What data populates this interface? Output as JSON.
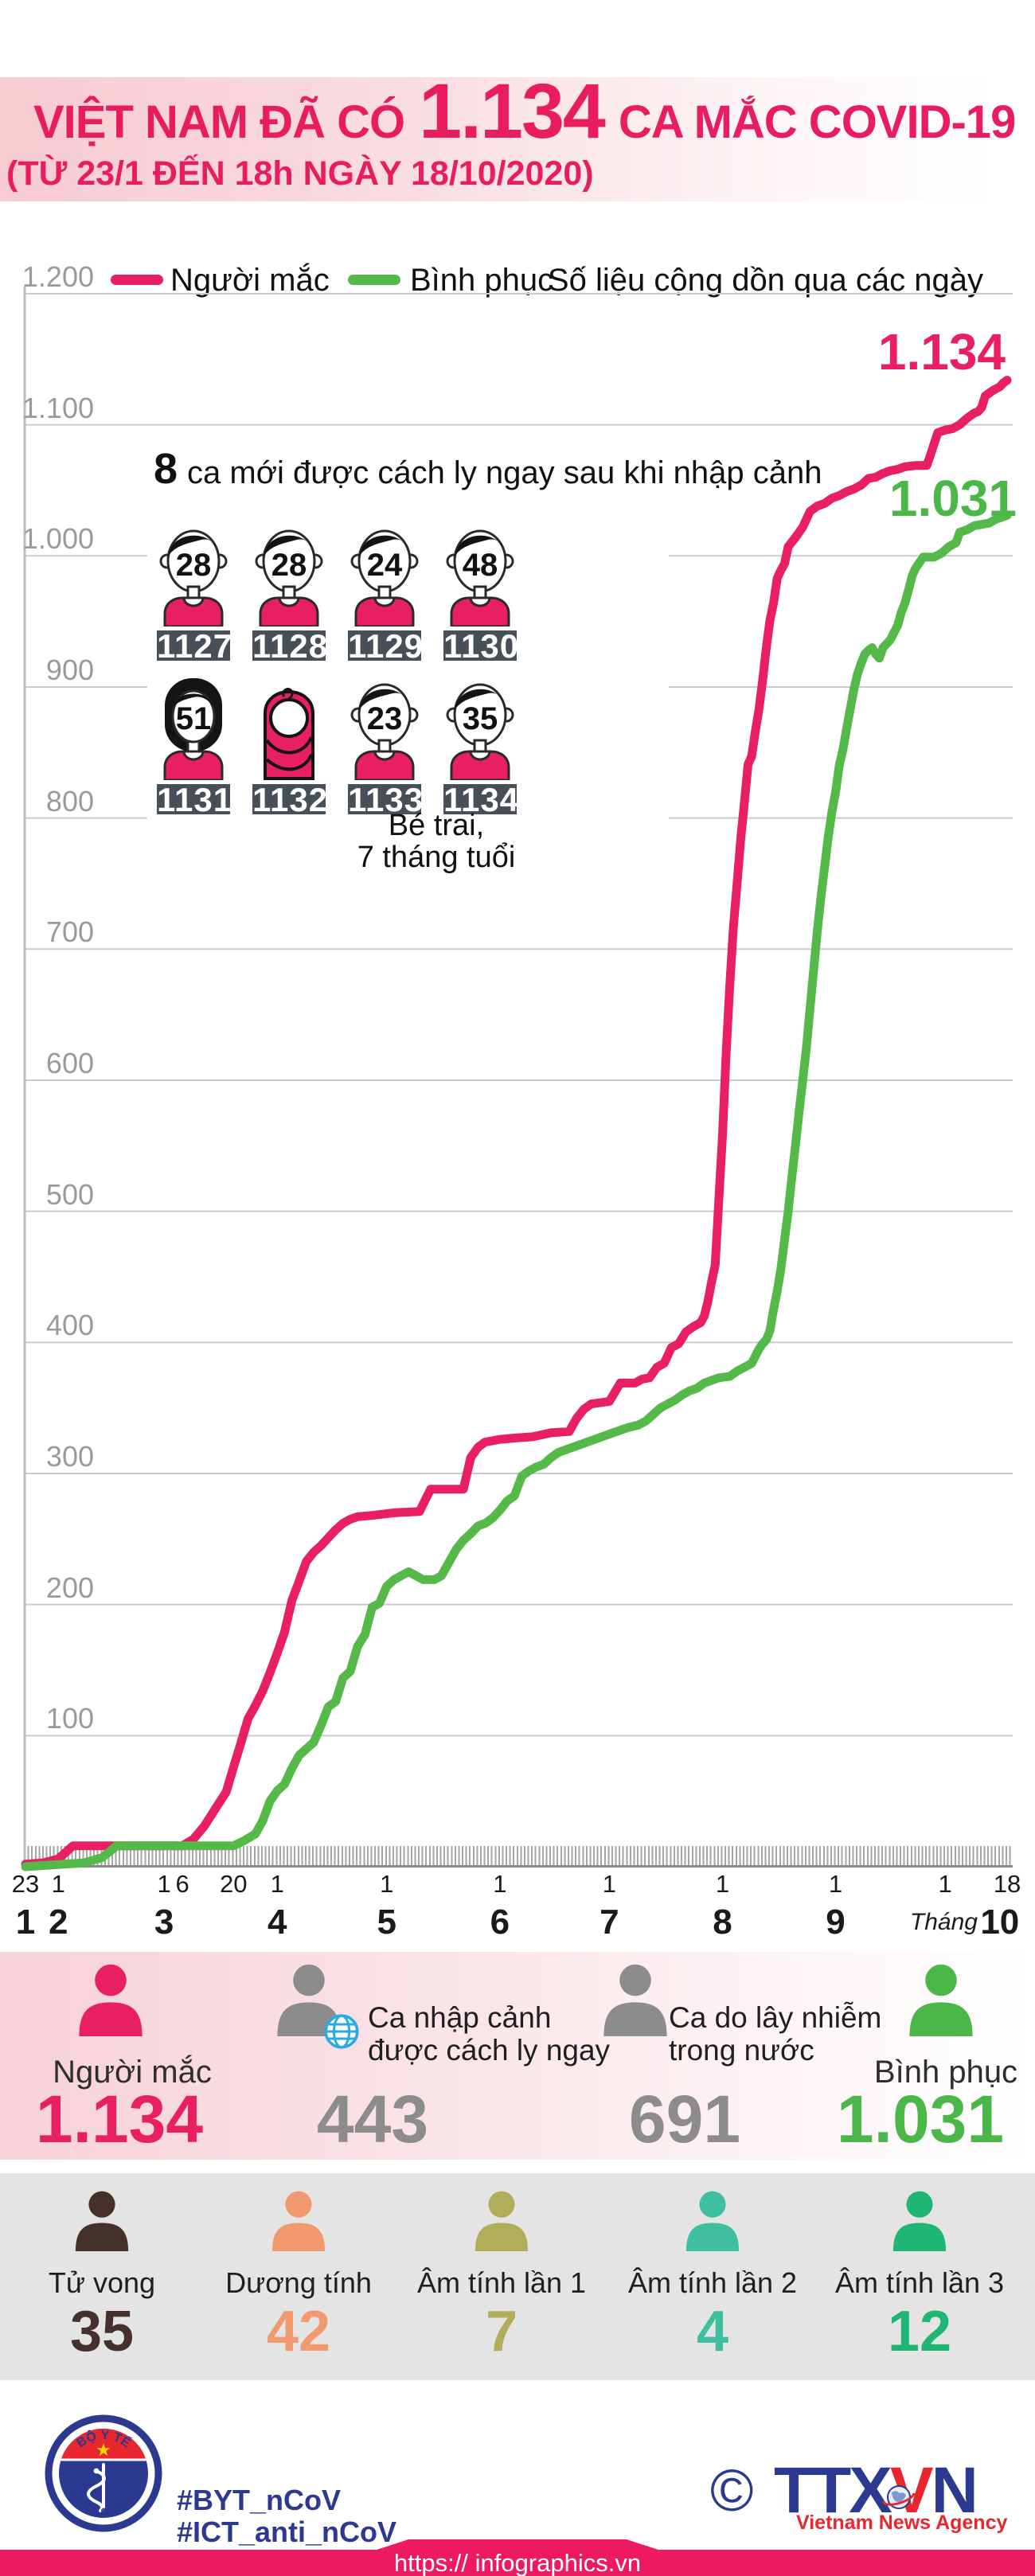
{
  "header": {
    "title_prefix": "VIỆT NAM ĐÃ CÓ",
    "title_number": "1.134",
    "title_suffix": "CA MẮC COVID-19",
    "subtitle": "(TỪ 23/1 ĐẾN 18h NGÀY 18/10/2020)"
  },
  "legend": {
    "note": "Số liệu cộng dồn qua các ngày"
  },
  "annotation": {
    "count": "8",
    "text": "ca mới được cách ly ngay sau khi nhập cảnh",
    "caption_line1": "Bé trai,",
    "caption_line2": "7 tháng tuổi",
    "persons": [
      {
        "age": "28",
        "id": "1127",
        "type": "male"
      },
      {
        "age": "28",
        "id": "1128",
        "type": "male"
      },
      {
        "age": "24",
        "id": "1129",
        "type": "male"
      },
      {
        "age": "48",
        "id": "1130",
        "type": "male"
      },
      {
        "age": "51",
        "id": "1131",
        "type": "female"
      },
      {
        "age": "",
        "id": "1132",
        "type": "baby"
      },
      {
        "age": "23",
        "id": "1133",
        "type": "male"
      },
      {
        "age": "35",
        "id": "1134",
        "type": "male"
      }
    ]
  },
  "chart_data": {
    "type": "line",
    "title": "Số liệu cộng dồn qua các ngày",
    "x_axis": "days, 23/1/2020 (day 0) to 18/10/2020 (day 269)",
    "ylabel": "",
    "ylim": [
      0,
      1200
    ],
    "grid": true,
    "y_ticks": [
      {
        "v": 1200,
        "label": "1.200"
      },
      {
        "v": 1100,
        "label": "1.100"
      },
      {
        "v": 1000,
        "label": "1.000"
      },
      {
        "v": 900,
        "label": "900"
      },
      {
        "v": 800,
        "label": "800"
      },
      {
        "v": 700,
        "label": "700"
      },
      {
        "v": 600,
        "label": "600"
      },
      {
        "v": 500,
        "label": "500"
      },
      {
        "v": 400,
        "label": "400"
      },
      {
        "v": 300,
        "label": "300"
      },
      {
        "v": 200,
        "label": "200"
      },
      {
        "v": 100,
        "label": "100"
      }
    ],
    "x_day_ticks": [
      {
        "day": 0,
        "label": "23"
      },
      {
        "day": 9,
        "label": "1"
      },
      {
        "day": 38,
        "label": "1"
      },
      {
        "day": 43,
        "label": "6"
      },
      {
        "day": 57,
        "label": "20"
      },
      {
        "day": 69,
        "label": "1"
      },
      {
        "day": 99,
        "label": "1"
      },
      {
        "day": 130,
        "label": "1"
      },
      {
        "day": 160,
        "label": "1"
      },
      {
        "day": 191,
        "label": "1"
      },
      {
        "day": 222,
        "label": "1"
      },
      {
        "day": 252,
        "label": "1"
      },
      {
        "day": 269,
        "label": "18"
      }
    ],
    "x_month_ticks": [
      {
        "day": 0,
        "label": "1"
      },
      {
        "day": 9,
        "label": "2"
      },
      {
        "day": 38,
        "label": "3"
      },
      {
        "day": 69,
        "label": "4"
      },
      {
        "day": 99,
        "label": "5"
      },
      {
        "day": 130,
        "label": "6"
      },
      {
        "day": 160,
        "label": "7"
      },
      {
        "day": 191,
        "label": "8"
      },
      {
        "day": 222,
        "label": "9"
      },
      {
        "day": 267,
        "label": "10"
      }
    ],
    "month_prefix": "Tháng",
    "series": [
      {
        "name": "Người mắc",
        "color": "#e81f63",
        "end_label": "1.134",
        "points": [
          [
            0,
            2
          ],
          [
            5,
            3
          ],
          [
            9,
            6
          ],
          [
            13,
            16
          ],
          [
            43,
            16
          ],
          [
            46,
            21
          ],
          [
            49,
            31
          ],
          [
            52,
            44
          ],
          [
            55,
            57
          ],
          [
            57,
            76
          ],
          [
            59,
            94
          ],
          [
            61,
            113
          ],
          [
            63,
            123
          ],
          [
            65,
            134
          ],
          [
            67,
            148
          ],
          [
            69,
            163
          ],
          [
            71,
            179
          ],
          [
            73,
            203
          ],
          [
            75,
            218
          ],
          [
            77,
            233
          ],
          [
            79,
            240
          ],
          [
            81,
            245
          ],
          [
            83,
            251
          ],
          [
            85,
            257
          ],
          [
            87,
            262
          ],
          [
            89,
            265
          ],
          [
            91,
            267
          ],
          [
            95,
            268
          ],
          [
            101,
            270
          ],
          [
            108,
            271
          ],
          [
            111,
            288
          ],
          [
            120,
            288
          ],
          [
            122,
            312
          ],
          [
            124,
            320
          ],
          [
            126,
            324
          ],
          [
            130,
            326
          ],
          [
            134,
            327
          ],
          [
            139,
            328
          ],
          [
            144,
            331
          ],
          [
            149,
            332
          ],
          [
            151,
            342
          ],
          [
            153,
            349
          ],
          [
            155,
            353
          ],
          [
            160,
            355
          ],
          [
            163,
            369
          ],
          [
            167,
            369
          ],
          [
            169,
            372
          ],
          [
            171,
            373
          ],
          [
            173,
            381
          ],
          [
            175,
            384
          ],
          [
            177,
            396
          ],
          [
            179,
            399
          ],
          [
            181,
            408
          ],
          [
            183,
            412
          ],
          [
            185,
            415
          ],
          [
            186,
            420
          ],
          [
            187,
            431
          ],
          [
            188,
            446
          ],
          [
            189,
            459
          ],
          [
            190,
            509
          ],
          [
            191,
            558
          ],
          [
            192,
            621
          ],
          [
            193,
            672
          ],
          [
            194,
            717
          ],
          [
            195,
            750
          ],
          [
            196,
            784
          ],
          [
            197,
            812
          ],
          [
            198,
            841
          ],
          [
            199,
            847
          ],
          [
            200,
            866
          ],
          [
            201,
            883
          ],
          [
            202,
            905
          ],
          [
            203,
            930
          ],
          [
            204,
            951
          ],
          [
            205,
            964
          ],
          [
            206,
            983
          ],
          [
            207,
            989
          ],
          [
            208,
            994
          ],
          [
            209,
            1007
          ],
          [
            211,
            1014
          ],
          [
            213,
            1022
          ],
          [
            215,
            1034
          ],
          [
            217,
            1038
          ],
          [
            219,
            1040
          ],
          [
            221,
            1044
          ],
          [
            223,
            1046
          ],
          [
            225,
            1049
          ],
          [
            227,
            1051
          ],
          [
            229,
            1054
          ],
          [
            231,
            1059
          ],
          [
            233,
            1060
          ],
          [
            235,
            1063
          ],
          [
            237,
            1065
          ],
          [
            239,
            1066
          ],
          [
            241,
            1068
          ],
          [
            244,
            1069
          ],
          [
            247,
            1069
          ],
          [
            248,
            1077
          ],
          [
            250,
            1094
          ],
          [
            252,
            1096
          ],
          [
            254,
            1097
          ],
          [
            256,
            1100
          ],
          [
            258,
            1105
          ],
          [
            260,
            1109
          ],
          [
            261,
            1110
          ],
          [
            262,
            1113
          ],
          [
            263,
            1122
          ],
          [
            264,
            1124
          ],
          [
            265,
            1126
          ],
          [
            267,
            1129
          ],
          [
            268,
            1132
          ],
          [
            269,
            1134
          ]
        ]
      },
      {
        "name": "Bình phục",
        "color": "#54b948",
        "end_label": "1.031",
        "points": [
          [
            0,
            0
          ],
          [
            16,
            3
          ],
          [
            21,
            7
          ],
          [
            25,
            16
          ],
          [
            57,
            16
          ],
          [
            60,
            20
          ],
          [
            63,
            25
          ],
          [
            65,
            35
          ],
          [
            67,
            50
          ],
          [
            69,
            58
          ],
          [
            71,
            63
          ],
          [
            73,
            75
          ],
          [
            75,
            85
          ],
          [
            77,
            90
          ],
          [
            79,
            95
          ],
          [
            81,
            108
          ],
          [
            83,
            122
          ],
          [
            85,
            126
          ],
          [
            87,
            144
          ],
          [
            89,
            149
          ],
          [
            91,
            168
          ],
          [
            93,
            177
          ],
          [
            95,
            198
          ],
          [
            97,
            201
          ],
          [
            99,
            214
          ],
          [
            101,
            219
          ],
          [
            103,
            222
          ],
          [
            105,
            225
          ],
          [
            107,
            222
          ],
          [
            109,
            219
          ],
          [
            112,
            219
          ],
          [
            114,
            222
          ],
          [
            116,
            232
          ],
          [
            118,
            242
          ],
          [
            120,
            249
          ],
          [
            122,
            254
          ],
          [
            124,
            260
          ],
          [
            126,
            262
          ],
          [
            128,
            266
          ],
          [
            130,
            272
          ],
          [
            132,
            279
          ],
          [
            134,
            283
          ],
          [
            136,
            298
          ],
          [
            138,
            302
          ],
          [
            140,
            305
          ],
          [
            142,
            307
          ],
          [
            144,
            312
          ],
          [
            146,
            316
          ],
          [
            148,
            318
          ],
          [
            150,
            320
          ],
          [
            153,
            323
          ],
          [
            156,
            326
          ],
          [
            159,
            329
          ],
          [
            162,
            332
          ],
          [
            165,
            335
          ],
          [
            168,
            337
          ],
          [
            170,
            340
          ],
          [
            172,
            345
          ],
          [
            174,
            350
          ],
          [
            176,
            353
          ],
          [
            178,
            356
          ],
          [
            180,
            360
          ],
          [
            182,
            363
          ],
          [
            184,
            365
          ],
          [
            186,
            369
          ],
          [
            188,
            371
          ],
          [
            190,
            373
          ],
          [
            193,
            374
          ],
          [
            195,
            378
          ],
          [
            197,
            381
          ],
          [
            199,
            384
          ],
          [
            201,
            395
          ],
          [
            202,
            399
          ],
          [
            203,
            402
          ],
          [
            204,
            409
          ],
          [
            205,
            425
          ],
          [
            206,
            439
          ],
          [
            207,
            456
          ],
          [
            208,
            478
          ],
          [
            209,
            500
          ],
          [
            210,
            526
          ],
          [
            211,
            550
          ],
          [
            212,
            576
          ],
          [
            213,
            600
          ],
          [
            214,
            625
          ],
          [
            215,
            655
          ],
          [
            216,
            685
          ],
          [
            217,
            714
          ],
          [
            218,
            740
          ],
          [
            219,
            763
          ],
          [
            220,
            786
          ],
          [
            221,
            805
          ],
          [
            222,
            820
          ],
          [
            223,
            840
          ],
          [
            224,
            852
          ],
          [
            225,
            868
          ],
          [
            226,
            883
          ],
          [
            227,
            898
          ],
          [
            228,
            910
          ],
          [
            229,
            918
          ],
          [
            230,
            925
          ],
          [
            231,
            928
          ],
          [
            232,
            930
          ],
          [
            233,
            925
          ],
          [
            234,
            922
          ],
          [
            235,
            930
          ],
          [
            237,
            936
          ],
          [
            239,
            947
          ],
          [
            240,
            957
          ],
          [
            241,
            964
          ],
          [
            242,
            974
          ],
          [
            243,
            985
          ],
          [
            244,
            991
          ],
          [
            245,
            995
          ],
          [
            246,
            999
          ],
          [
            249,
            999
          ],
          [
            251,
            1002
          ],
          [
            253,
            1007
          ],
          [
            255,
            1010
          ],
          [
            256,
            1018
          ],
          [
            258,
            1020
          ],
          [
            260,
            1023
          ],
          [
            262,
            1024
          ],
          [
            264,
            1025
          ],
          [
            266,
            1028
          ],
          [
            268,
            1030
          ],
          [
            269,
            1031
          ]
        ]
      }
    ]
  },
  "stats_primary": [
    {
      "label": "Người mắc",
      "value": "1.134",
      "value_color": "#e81f63",
      "icon_color": "#e81f63",
      "layout": "stack"
    },
    {
      "label_line1": "Ca nhập cảnh",
      "label_line2": "được cách ly ngay",
      "value": "443",
      "value_color": "#8c8c8c",
      "icon_color": "#8c8c8c",
      "layout": "side",
      "globe": true
    },
    {
      "label_line1": "Ca do lây nhiễm",
      "label_line2": "trong nước",
      "value": "691",
      "value_color": "#8c8c8c",
      "icon_color": "#8c8c8c",
      "layout": "side"
    },
    {
      "label": "Bình phục",
      "value": "1.031",
      "value_color": "#4bb749",
      "icon_color": "#4bb749",
      "layout": "stack"
    }
  ],
  "stats_secondary": [
    {
      "label": "Tử vong",
      "value": "35",
      "color": "#46302e"
    },
    {
      "label": "Dương tính",
      "value": "42",
      "color": "#f19a70"
    },
    {
      "label": "Âm tính lần 1",
      "value": "7",
      "color": "#b2ad58"
    },
    {
      "label": "Âm tính lần 2",
      "value": "4",
      "color": "#3fbf9f"
    },
    {
      "label": "Âm tính lần 3",
      "value": "12",
      "color": "#1fb573"
    }
  ],
  "footer": {
    "hashtag1": "#BYT_nCoV",
    "hashtag2": "#ICT_anti_nCoV",
    "copyright": "©",
    "agency_part1": "TTX",
    "agency_part2": "V",
    "agency_part3": "N",
    "agency_sub": "Vietnam News Agency",
    "url": "https:// infographics.vn",
    "moh_top": "BỘ Y TẾ",
    "moh_bottom": "MINISTRY OF HEALTH"
  }
}
